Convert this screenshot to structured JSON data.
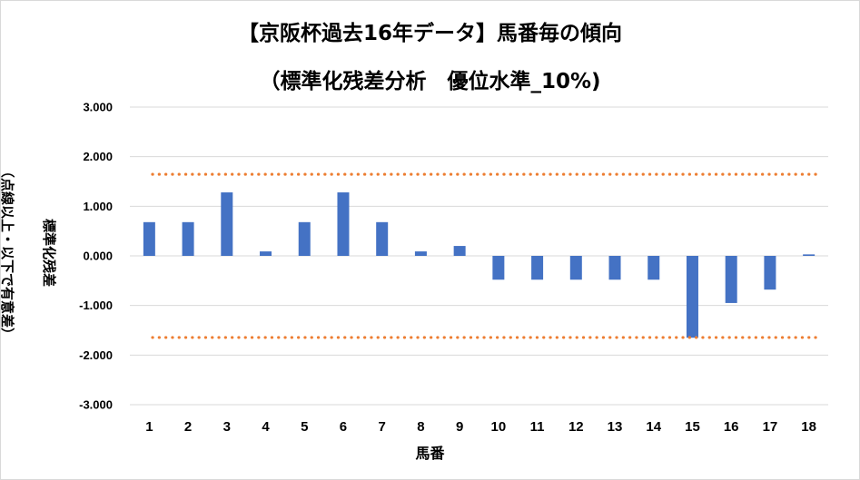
{
  "chart_data": {
    "type": "bar",
    "title": "【京阪杯過去16年データ】馬番毎の傾向",
    "subtitle": "（標準化残差分析　優位水準_10%)",
    "xlabel": "馬番",
    "ylabel": "標準化残差",
    "ylabel2": "（点線以上・以下で有意差）",
    "categories": [
      "1",
      "2",
      "3",
      "4",
      "5",
      "6",
      "7",
      "8",
      "9",
      "10",
      "11",
      "12",
      "13",
      "14",
      "15",
      "16",
      "17",
      "18"
    ],
    "series": [
      {
        "values": [
          0.68,
          0.68,
          1.28,
          0.09,
          0.68,
          1.28,
          0.68,
          0.09,
          0.2,
          -0.48,
          -0.48,
          -0.48,
          -0.48,
          -0.48,
          -1.65,
          -0.95,
          -0.68,
          0.03
        ]
      }
    ],
    "ylim": [
      -3,
      3
    ],
    "yticks": [
      "3.000",
      "2.000",
      "1.000",
      "0.000",
      "-1.000",
      "-2.000",
      "-3.000"
    ],
    "ytick_values": [
      3,
      2,
      1,
      0,
      -1,
      -2,
      -3
    ],
    "thresholds": [
      1.645,
      -1.645
    ],
    "colors": {
      "bar": "#4472C4",
      "threshold": "#ED7D31",
      "gridline": "#d9d9d9"
    },
    "grid": true
  }
}
